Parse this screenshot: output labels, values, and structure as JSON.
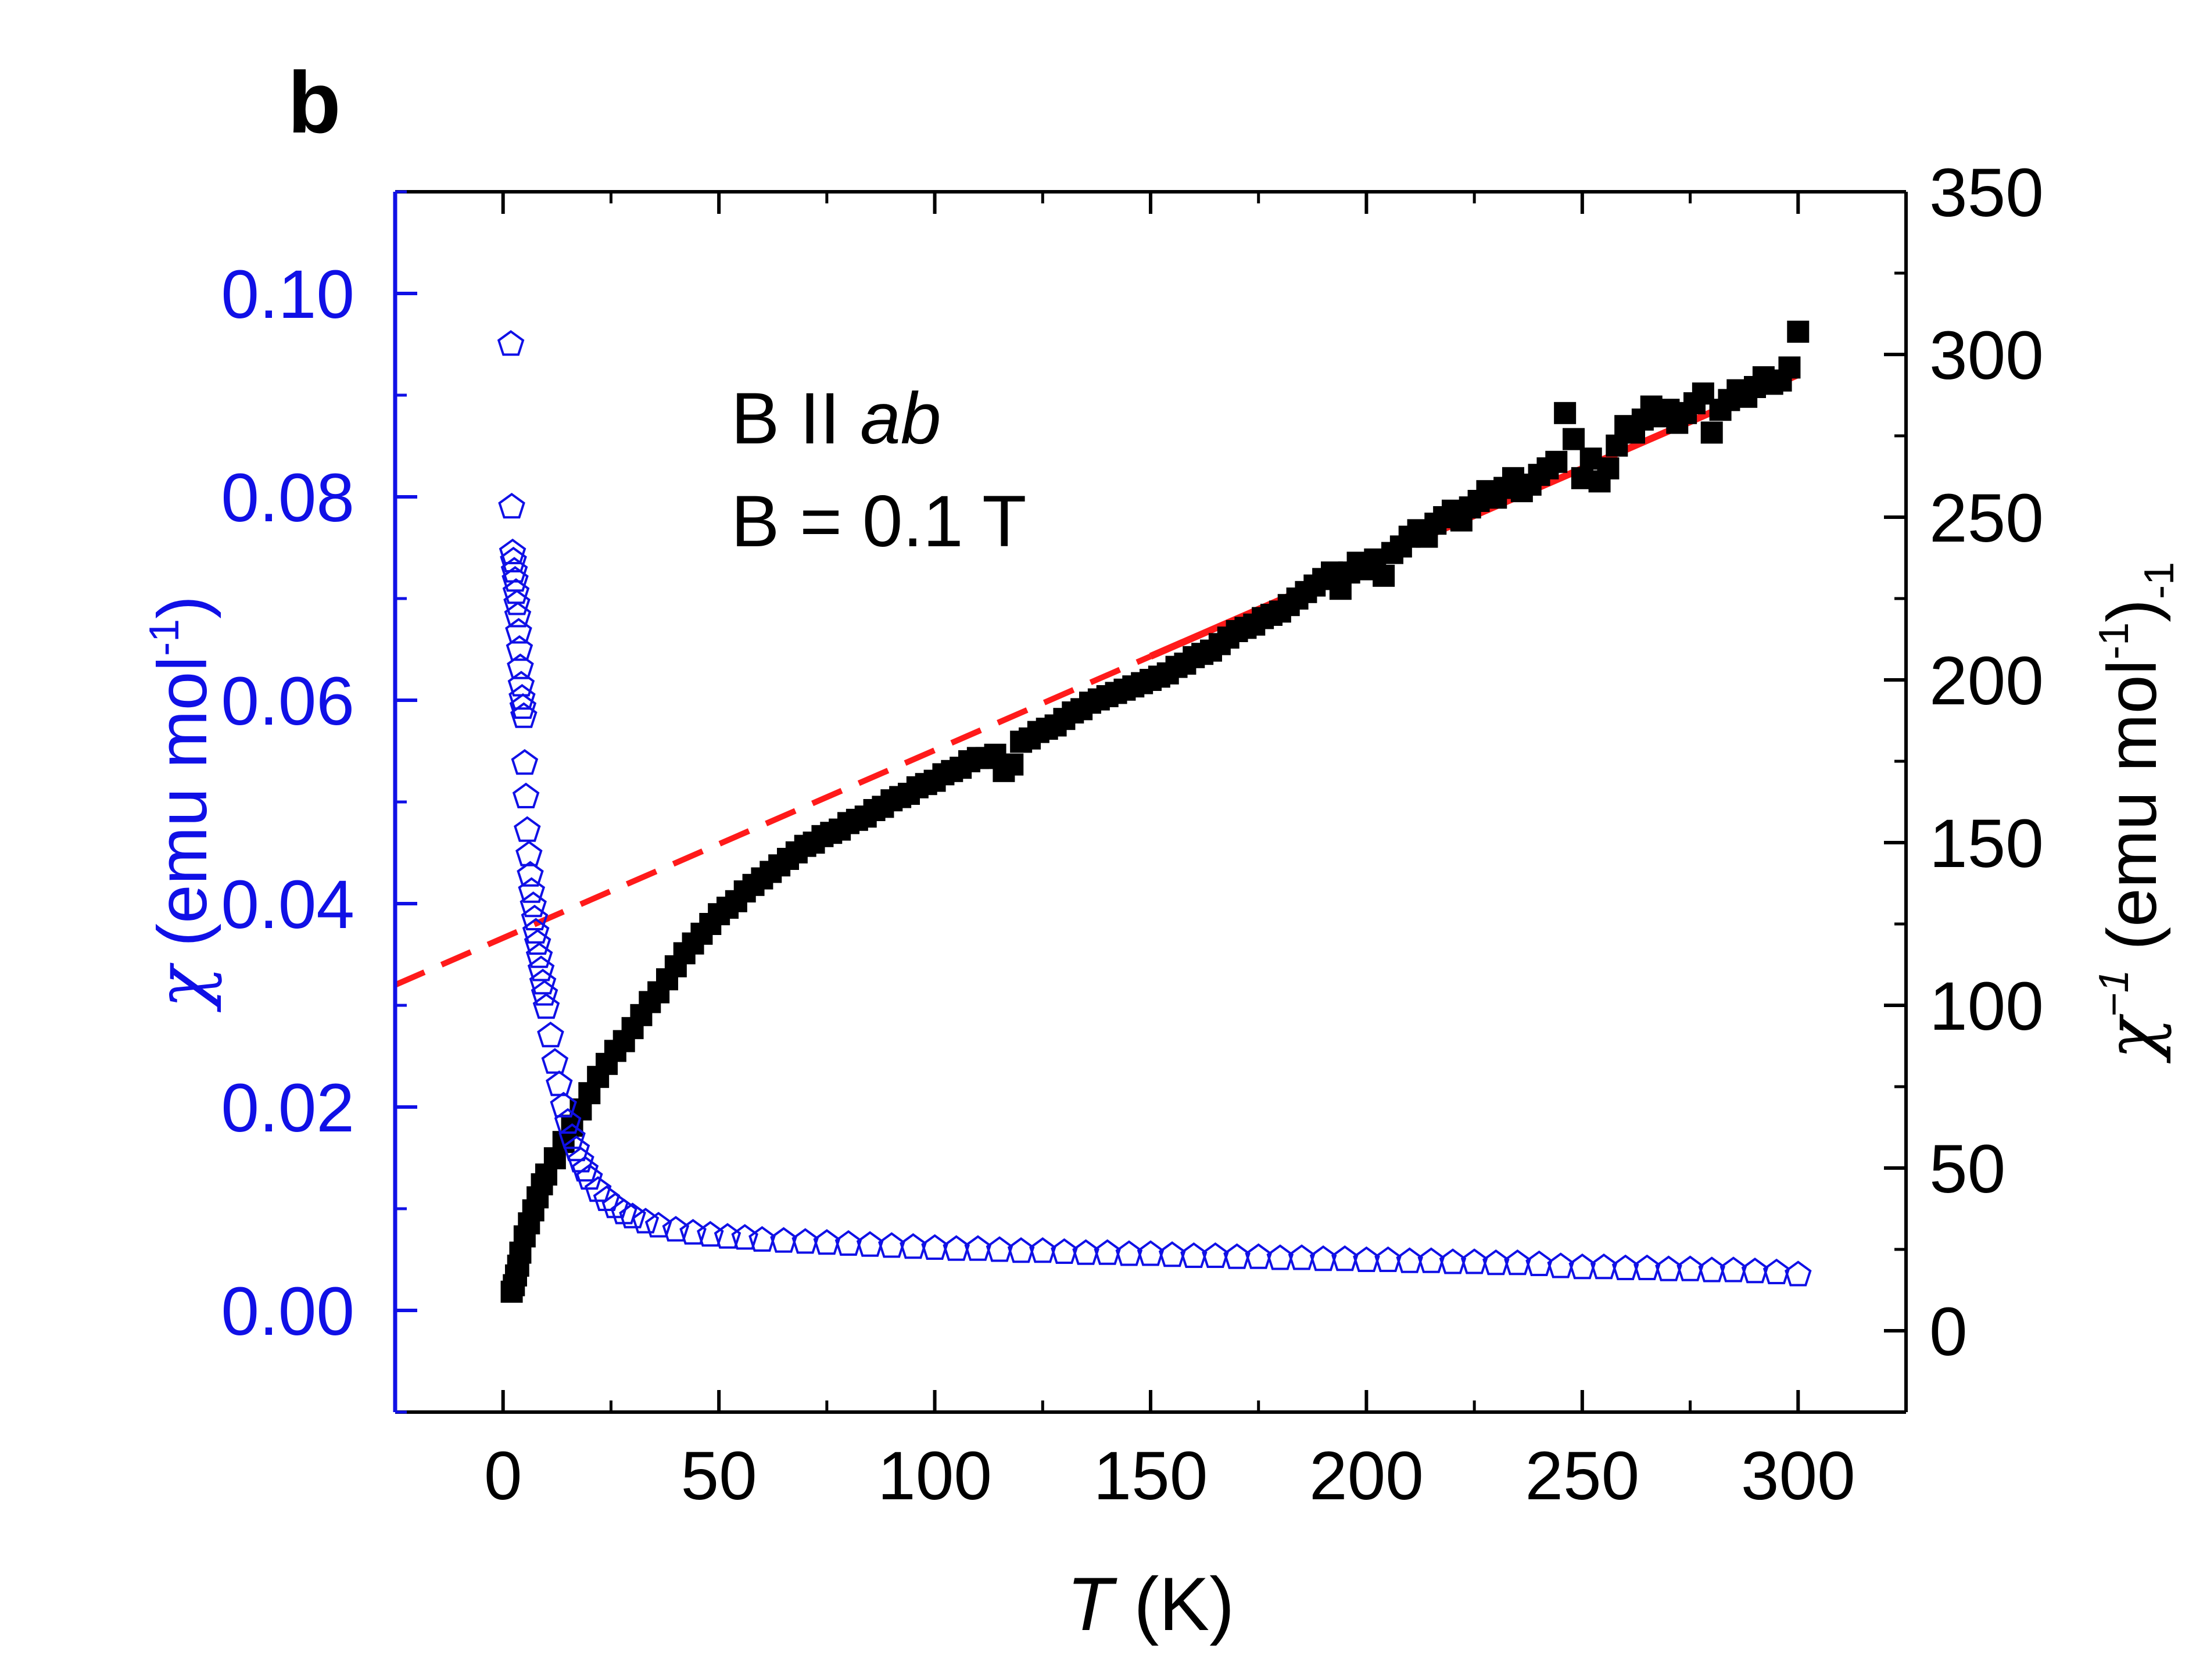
{
  "panel_label": "b",
  "annotations": {
    "field_direction": {
      "prefix": "B II ",
      "italic": "ab"
    },
    "field_value": "B = 0.1 T"
  },
  "x_axis": {
    "label_italic": "T",
    "label_rest": " (K)",
    "ticks": [
      "0",
      "50",
      "100",
      "150",
      "200",
      "250",
      "300"
    ]
  },
  "y_left_axis": {
    "label_symbol": "χ",
    "label_rest": " (emu mol",
    "label_sup": "-1",
    "label_close": ")",
    "ticks": [
      "0.00",
      "0.02",
      "0.04",
      "0.06",
      "0.08",
      "0.10"
    ]
  },
  "y_right_axis": {
    "label_symbol": "χ",
    "label_sup": "−1",
    "label_rest": " (emu mol",
    "label_sup2": "-1",
    "label_close": ")",
    "label_sub": "-1",
    "ticks": [
      "0",
      "50",
      "100",
      "150",
      "200",
      "250",
      "300",
      "350"
    ]
  },
  "colors": {
    "chi": "#1010e6",
    "inverse_chi": "#000000",
    "fit": "#ff1a1a",
    "frame": "#000000",
    "left_axis": "#1010e6"
  },
  "chart_data": {
    "type": "scatter",
    "x_range": [
      -25,
      325
    ],
    "y_left_range": [
      -0.01,
      0.11
    ],
    "y_right_range": [
      -25,
      350
    ],
    "x_tick_values": [
      0,
      50,
      100,
      150,
      200,
      250,
      300
    ],
    "y_left_tick_values": [
      0,
      0.02,
      0.04,
      0.06,
      0.08,
      0.1
    ],
    "y_right_tick_values": [
      0,
      50,
      100,
      150,
      200,
      250,
      300,
      350
    ],
    "series": [
      {
        "name": "χ",
        "axis": "left",
        "marker": "open-pentagon",
        "color": "#1010e6",
        "points": [
          [
            1.8,
            0.095
          ],
          [
            2.0,
            0.079
          ],
          [
            2.2,
            0.0745
          ],
          [
            2.4,
            0.0737
          ],
          [
            2.6,
            0.0727
          ],
          [
            2.8,
            0.0718
          ],
          [
            3.0,
            0.0706
          ],
          [
            3.2,
            0.0695
          ],
          [
            3.4,
            0.0683
          ],
          [
            3.6,
            0.0667
          ],
          [
            3.8,
            0.065
          ],
          [
            4.0,
            0.0632
          ],
          [
            4.2,
            0.0615
          ],
          [
            4.4,
            0.0602
          ],
          [
            4.6,
            0.0593
          ],
          [
            4.8,
            0.0584
          ],
          [
            5.0,
            0.0538
          ],
          [
            5.3,
            0.0505
          ],
          [
            5.6,
            0.0472
          ],
          [
            6.0,
            0.0448
          ],
          [
            6.3,
            0.0428
          ],
          [
            6.6,
            0.0412
          ],
          [
            7.0,
            0.0398
          ],
          [
            7.3,
            0.0385
          ],
          [
            7.6,
            0.0372
          ],
          [
            8.0,
            0.0361
          ],
          [
            8.4,
            0.0348
          ],
          [
            8.8,
            0.0335
          ],
          [
            9.2,
            0.0322
          ],
          [
            9.6,
            0.0311
          ],
          [
            10,
            0.0298
          ],
          [
            11,
            0.027
          ],
          [
            12,
            0.0244
          ],
          [
            13,
            0.0222
          ],
          [
            14,
            0.0201
          ],
          [
            15,
            0.0185
          ],
          [
            16,
            0.017
          ],
          [
            17,
            0.0158
          ],
          [
            18,
            0.0147
          ],
          [
            19,
            0.0138
          ],
          [
            20,
            0.013
          ],
          [
            22,
            0.0118
          ],
          [
            24,
            0.0109
          ],
          [
            26,
            0.0102
          ],
          [
            28,
            0.0096
          ],
          [
            30,
            0.0092
          ],
          [
            33,
            0.0087
          ],
          [
            36,
            0.0083
          ],
          [
            40,
            0.0079
          ],
          [
            44,
            0.0076
          ],
          [
            48,
            0.0074
          ],
          [
            52,
            0.0072
          ],
          [
            56,
            0.0071
          ],
          [
            60,
            0.0069
          ],
          [
            65,
            0.0068
          ],
          [
            70,
            0.0067
          ],
          [
            75,
            0.0066
          ],
          [
            80,
            0.0065
          ],
          [
            85,
            0.0064
          ],
          [
            90,
            0.0063
          ],
          [
            95,
            0.0062
          ],
          [
            100,
            0.0061
          ],
          [
            105,
            0.006
          ],
          [
            110,
            0.006
          ],
          [
            115,
            0.0059
          ],
          [
            120,
            0.0058
          ],
          [
            125,
            0.0058
          ],
          [
            130,
            0.0057
          ],
          [
            135,
            0.0056
          ],
          [
            140,
            0.0056
          ],
          [
            145,
            0.0055
          ],
          [
            150,
            0.0055
          ],
          [
            155,
            0.0054
          ],
          [
            160,
            0.0053
          ],
          [
            165,
            0.0053
          ],
          [
            170,
            0.0052
          ],
          [
            175,
            0.0052
          ],
          [
            180,
            0.0051
          ],
          [
            185,
            0.0051
          ],
          [
            190,
            0.005
          ],
          [
            195,
            0.005
          ],
          [
            200,
            0.0049
          ],
          [
            205,
            0.0049
          ],
          [
            210,
            0.0048
          ],
          [
            215,
            0.0048
          ],
          [
            220,
            0.0047
          ],
          [
            225,
            0.0047
          ],
          [
            230,
            0.0046
          ],
          [
            235,
            0.0046
          ],
          [
            240,
            0.0045
          ],
          [
            245,
            0.0043
          ],
          [
            250,
            0.0042
          ],
          [
            255,
            0.0042
          ],
          [
            260,
            0.0041
          ],
          [
            265,
            0.0041
          ],
          [
            270,
            0.004
          ],
          [
            275,
            0.004
          ],
          [
            280,
            0.0039
          ],
          [
            285,
            0.0039
          ],
          [
            290,
            0.0038
          ],
          [
            295,
            0.0037
          ],
          [
            300,
            0.0035
          ]
        ]
      },
      {
        "name": "χ⁻¹",
        "axis": "right",
        "marker": "filled-square",
        "color": "#000000",
        "points": [
          [
            2,
            12
          ],
          [
            2.5,
            14
          ],
          [
            3,
            17
          ],
          [
            3.5,
            20
          ],
          [
            4,
            24
          ],
          [
            5,
            29
          ],
          [
            6,
            33
          ],
          [
            7,
            37
          ],
          [
            8,
            41
          ],
          [
            9,
            45
          ],
          [
            10,
            48
          ],
          [
            12,
            53
          ],
          [
            14,
            58
          ],
          [
            16,
            63
          ],
          [
            18,
            68
          ],
          [
            20,
            73
          ],
          [
            22,
            78
          ],
          [
            24,
            82
          ],
          [
            26,
            86
          ],
          [
            28,
            89
          ],
          [
            30,
            93
          ],
          [
            32,
            97
          ],
          [
            34,
            101
          ],
          [
            36,
            104
          ],
          [
            38,
            108
          ],
          [
            40,
            112
          ],
          [
            42,
            116
          ],
          [
            44,
            119
          ],
          [
            46,
            122
          ],
          [
            48,
            125
          ],
          [
            50,
            128
          ],
          [
            52,
            130
          ],
          [
            54,
            132
          ],
          [
            56,
            135
          ],
          [
            58,
            137
          ],
          [
            60,
            139
          ],
          [
            62,
            141
          ],
          [
            64,
            143
          ],
          [
            66,
            145
          ],
          [
            68,
            147
          ],
          [
            70,
            149
          ],
          [
            72,
            150
          ],
          [
            74,
            152
          ],
          [
            76,
            153
          ],
          [
            78,
            154
          ],
          [
            80,
            156
          ],
          [
            82,
            157
          ],
          [
            84,
            158
          ],
          [
            86,
            160
          ],
          [
            88,
            161
          ],
          [
            90,
            163
          ],
          [
            92,
            164
          ],
          [
            94,
            165
          ],
          [
            96,
            167
          ],
          [
            98,
            168
          ],
          [
            100,
            169
          ],
          [
            102,
            171
          ],
          [
            104,
            172
          ],
          [
            106,
            173
          ],
          [
            108,
            175
          ],
          [
            110,
            176
          ],
          [
            112,
            176
          ],
          [
            114,
            177
          ],
          [
            116,
            172
          ],
          [
            118,
            174
          ],
          [
            120,
            181
          ],
          [
            122,
            182
          ],
          [
            124,
            184
          ],
          [
            126,
            185
          ],
          [
            128,
            186
          ],
          [
            130,
            188
          ],
          [
            132,
            190
          ],
          [
            134,
            191
          ],
          [
            136,
            193
          ],
          [
            138,
            194
          ],
          [
            140,
            195
          ],
          [
            142,
            196
          ],
          [
            144,
            197
          ],
          [
            146,
            198
          ],
          [
            148,
            199
          ],
          [
            150,
            200
          ],
          [
            152,
            201
          ],
          [
            154,
            202
          ],
          [
            156,
            204
          ],
          [
            158,
            205
          ],
          [
            160,
            207
          ],
          [
            162,
            208
          ],
          [
            164,
            209
          ],
          [
            166,
            211
          ],
          [
            168,
            213
          ],
          [
            170,
            215
          ],
          [
            172,
            216
          ],
          [
            174,
            217
          ],
          [
            176,
            219
          ],
          [
            178,
            220
          ],
          [
            180,
            221
          ],
          [
            182,
            223
          ],
          [
            184,
            225
          ],
          [
            186,
            227
          ],
          [
            188,
            229
          ],
          [
            190,
            231
          ],
          [
            192,
            233
          ],
          [
            194,
            228
          ],
          [
            196,
            233
          ],
          [
            198,
            236
          ],
          [
            200,
            234
          ],
          [
            202,
            237
          ],
          [
            204,
            232
          ],
          [
            206,
            239
          ],
          [
            208,
            241
          ],
          [
            210,
            244
          ],
          [
            212,
            246
          ],
          [
            214,
            244
          ],
          [
            216,
            248
          ],
          [
            218,
            250
          ],
          [
            220,
            252
          ],
          [
            222,
            249
          ],
          [
            224,
            253
          ],
          [
            226,
            255
          ],
          [
            228,
            258
          ],
          [
            230,
            256
          ],
          [
            232,
            259
          ],
          [
            234,
            262
          ],
          [
            236,
            258
          ],
          [
            238,
            260
          ],
          [
            240,
            263
          ],
          [
            242,
            265
          ],
          [
            244,
            267
          ],
          [
            246,
            282
          ],
          [
            248,
            274
          ],
          [
            250,
            262
          ],
          [
            252,
            268
          ],
          [
            254,
            261
          ],
          [
            256,
            265
          ],
          [
            258,
            272
          ],
          [
            260,
            278
          ],
          [
            262,
            276
          ],
          [
            264,
            280
          ],
          [
            266,
            284
          ],
          [
            268,
            281
          ],
          [
            270,
            283
          ],
          [
            272,
            279
          ],
          [
            274,
            282
          ],
          [
            276,
            285
          ],
          [
            278,
            288
          ],
          [
            280,
            276
          ],
          [
            282,
            283
          ],
          [
            284,
            286
          ],
          [
            286,
            289
          ],
          [
            288,
            287
          ],
          [
            290,
            290
          ],
          [
            292,
            293
          ],
          [
            294,
            291
          ],
          [
            296,
            292
          ],
          [
            298,
            296
          ],
          [
            300,
            307
          ]
        ]
      },
      {
        "name": "Curie-Weiss fit",
        "axis": "right",
        "type": "line",
        "color": "#ff1a1a",
        "intercept": 120.7,
        "slope": 0.577,
        "solid_range": [
          150,
          300
        ],
        "dashed_range": [
          -25,
          150
        ]
      }
    ]
  }
}
